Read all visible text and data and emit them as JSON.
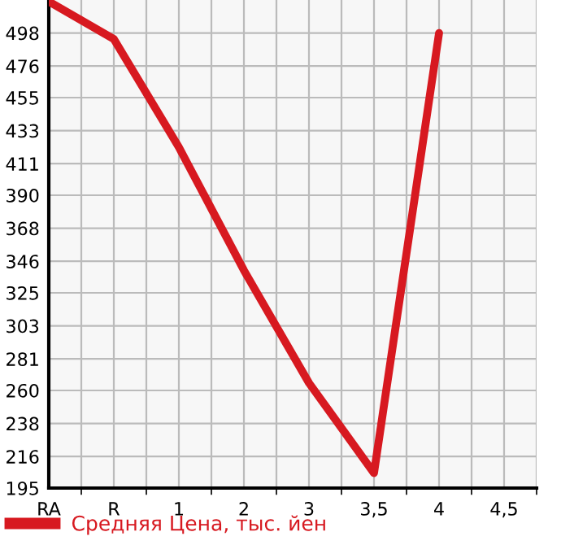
{
  "chart_data": {
    "type": "line",
    "categories": [
      "RA",
      "R",
      "1",
      "2",
      "3",
      "3,5",
      "4",
      "4,5"
    ],
    "series": [
      {
        "name": "Средняя Цена, тыс. йен",
        "color": "#d71920",
        "values": [
          519,
          494,
          422,
          340,
          265,
          205,
          498,
          null
        ]
      }
    ],
    "ylim": [
      195,
      520
    ],
    "yticks": [
      195,
      216,
      238,
      260,
      281,
      303,
      325,
      346,
      368,
      390,
      411,
      433,
      455,
      476,
      498
    ],
    "grid": true,
    "legend": "bottom",
    "marker": "none",
    "line_style": "solid"
  }
}
